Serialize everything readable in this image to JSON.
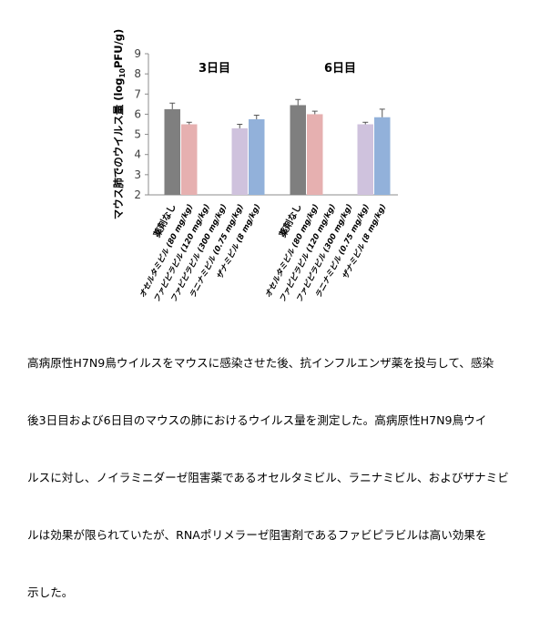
{
  "chart_data": {
    "type": "bar",
    "ylabel": "マウス肺でのウイルス量 (log10PFU/g)",
    "ylabel_parts": [
      "マウス肺でのウイルス量 (log",
      "10",
      "PFU/g)"
    ],
    "ylim": [
      2,
      9
    ],
    "yticks": [
      "2",
      "3",
      "4",
      "5",
      "6",
      "7",
      "8",
      "9"
    ],
    "grid": false,
    "legend": "none",
    "categories": [
      "薬剤なし",
      "オセルタミビル (80 mg/kg)",
      "ファビピラビル (120 mg/kg)",
      "ファビピラビル (300 mg/kg)",
      "ラニナミビル (0.75 mg/kg)",
      "ザナミビル (8 mg/kg)"
    ],
    "colors": [
      "#7f7f7f",
      "#e6b0b0",
      "#ffffff",
      "#ffffff",
      "#cfc2dd",
      "#92b1da"
    ],
    "groups": [
      {
        "title": "3日目",
        "values": [
          6.25,
          5.5,
          null,
          null,
          5.3,
          5.75
        ],
        "errors": [
          0.3,
          0.1,
          null,
          null,
          0.2,
          0.2
        ]
      },
      {
        "title": "6日目",
        "values": [
          6.45,
          6.0,
          null,
          null,
          5.5,
          5.85
        ],
        "errors": [
          0.28,
          0.15,
          null,
          null,
          0.1,
          0.4
        ]
      }
    ]
  },
  "caption": [
    "高病原性H7N9鳥ウイルスをマウスに感染させた後、抗インフルエンザ薬を投与して、感染",
    "後3日目および6日目のマウスの肺におけるウイルス量を測定した。高病原性H7N9鳥ウイ",
    "ルスに対し、ノイラミニダーゼ阻害薬であるオセルタミビル、ラニナミビル、およびザナミビ",
    "ルは効果が限られていたが、RNAポリメラーゼ阻害剤であるファビピラビルは高い効果を",
    "示した。"
  ]
}
